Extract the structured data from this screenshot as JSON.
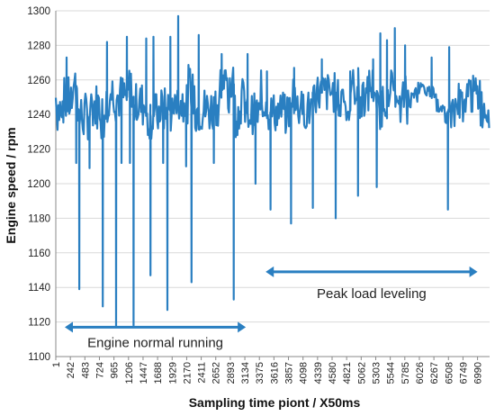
{
  "chart_data": {
    "type": "line",
    "title": "",
    "xlabel": "Sampling time piont / X50ms",
    "ylabel": "Engine speed / rpm",
    "ylim": [
      1100,
      1300
    ],
    "yticks": [
      1100,
      1120,
      1140,
      1160,
      1180,
      1200,
      1220,
      1240,
      1260,
      1280,
      1300
    ],
    "xlim": [
      1,
      7190
    ],
    "xticks": [
      1,
      242,
      483,
      724,
      965,
      1206,
      1447,
      1688,
      1929,
      2170,
      2411,
      2652,
      2893,
      3134,
      3375,
      3616,
      3857,
      4098,
      4339,
      4580,
      4821,
      5062,
      5303,
      5544,
      5785,
      6026,
      6267,
      6508,
      6749,
      6990
    ],
    "grid": "horizontal",
    "legend": "none",
    "series_color": "#2a7fc1",
    "annotation_color": "#2a7fc1",
    "annotations": [
      {
        "text": "Engine normal running",
        "x_from": 1,
        "x_to": 3150,
        "y": 1117
      },
      {
        "text": "Peak load leveling",
        "x_from": 3330,
        "x_to": 6990,
        "y": 1149
      }
    ],
    "spikes": [
      {
        "x": 180,
        "value": 1273
      },
      {
        "x": 340,
        "value": 1212
      },
      {
        "x": 390,
        "value": 1139
      },
      {
        "x": 560,
        "value": 1209
      },
      {
        "x": 700,
        "value": 1250
      },
      {
        "x": 780,
        "value": 1129
      },
      {
        "x": 850,
        "value": 1282
      },
      {
        "x": 1000,
        "value": 1117
      },
      {
        "x": 1090,
        "value": 1212
      },
      {
        "x": 1180,
        "value": 1285
      },
      {
        "x": 1230,
        "value": 1212
      },
      {
        "x": 1290,
        "value": 1118
      },
      {
        "x": 1500,
        "value": 1284
      },
      {
        "x": 1570,
        "value": 1147
      },
      {
        "x": 1620,
        "value": 1285
      },
      {
        "x": 1780,
        "value": 1212
      },
      {
        "x": 1850,
        "value": 1127
      },
      {
        "x": 1900,
        "value": 1285
      },
      {
        "x": 2030,
        "value": 1297
      },
      {
        "x": 2160,
        "value": 1210
      },
      {
        "x": 2250,
        "value": 1143
      },
      {
        "x": 2370,
        "value": 1286
      },
      {
        "x": 2620,
        "value": 1212
      },
      {
        "x": 2750,
        "value": 1275
      },
      {
        "x": 2950,
        "value": 1133
      },
      {
        "x": 3180,
        "value": 1275
      },
      {
        "x": 3310,
        "value": 1200
      },
      {
        "x": 3500,
        "value": 1265
      },
      {
        "x": 3560,
        "value": 1185
      },
      {
        "x": 3900,
        "value": 1177
      },
      {
        "x": 3950,
        "value": 1267
      },
      {
        "x": 4260,
        "value": 1186
      },
      {
        "x": 4410,
        "value": 1272
      },
      {
        "x": 4640,
        "value": 1180
      },
      {
        "x": 4880,
        "value": 1265
      },
      {
        "x": 5010,
        "value": 1193
      },
      {
        "x": 5260,
        "value": 1272
      },
      {
        "x": 5320,
        "value": 1198
      },
      {
        "x": 5380,
        "value": 1287
      },
      {
        "x": 5490,
        "value": 1283
      },
      {
        "x": 5620,
        "value": 1290
      },
      {
        "x": 5790,
        "value": 1280
      },
      {
        "x": 6230,
        "value": 1273
      },
      {
        "x": 6500,
        "value": 1185
      },
      {
        "x": 6520,
        "value": 1279
      }
    ]
  }
}
